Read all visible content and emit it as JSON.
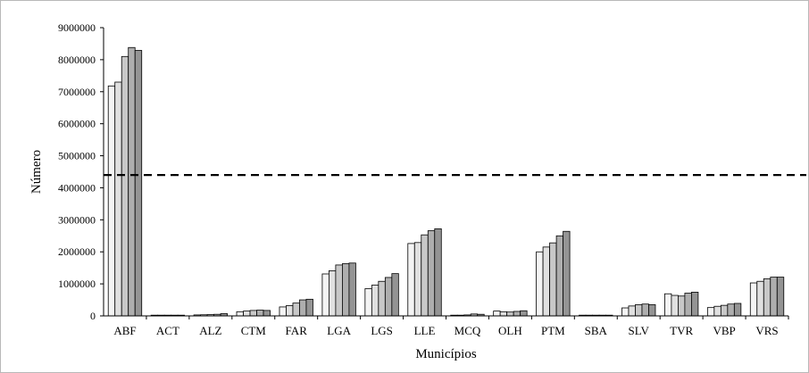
{
  "chart_data": {
    "type": "bar",
    "title": "",
    "xlabel": "Municípios",
    "ylabel": "Número",
    "ylim": [
      0,
      9000000
    ],
    "yticks": [
      "0",
      "1000000",
      "2000000",
      "3000000",
      "4000000",
      "5000000",
      "6000000",
      "7000000",
      "8000000",
      "9000000"
    ],
    "grid": false,
    "legend": "none",
    "reference_line": {
      "value": 4400000,
      "style": "dashed"
    },
    "series_colors": [
      "#f4f4f4",
      "#e0e0e0",
      "#c8c8c8",
      "#aeaeae",
      "#949494",
      "#7d7d7d"
    ],
    "categories": [
      "ABF",
      "ACT",
      "ALZ",
      "CTM",
      "FAR",
      "LGA",
      "LGS",
      "LLE",
      "MCQ",
      "OLH",
      "PTM",
      "SBA",
      "SLV",
      "TVR",
      "VBP",
      "VRS"
    ],
    "series": [
      {
        "values": [
          7180000,
          10000,
          30000,
          130000,
          280000,
          1310000,
          850000,
          2260000,
          15000,
          150000,
          2000000,
          10000,
          250000,
          690000,
          260000,
          1030000
        ]
      },
      {
        "values": [
          7300000,
          10000,
          35000,
          150000,
          320000,
          1410000,
          960000,
          2290000,
          20000,
          130000,
          2150000,
          10000,
          310000,
          640000,
          300000,
          1080000
        ]
      },
      {
        "values": [
          8100000,
          10000,
          40000,
          170000,
          400000,
          1590000,
          1080000,
          2530000,
          30000,
          120000,
          2280000,
          10000,
          350000,
          620000,
          330000,
          1160000
        ]
      },
      {
        "values": [
          8380000,
          10000,
          50000,
          180000,
          500000,
          1630000,
          1200000,
          2660000,
          60000,
          140000,
          2500000,
          10000,
          370000,
          710000,
          370000,
          1210000
        ]
      },
      {
        "values": [
          8290000,
          10000,
          70000,
          170000,
          520000,
          1650000,
          1320000,
          2720000,
          50000,
          160000,
          2640000,
          10000,
          350000,
          740000,
          390000,
          1210000
        ]
      }
    ]
  }
}
